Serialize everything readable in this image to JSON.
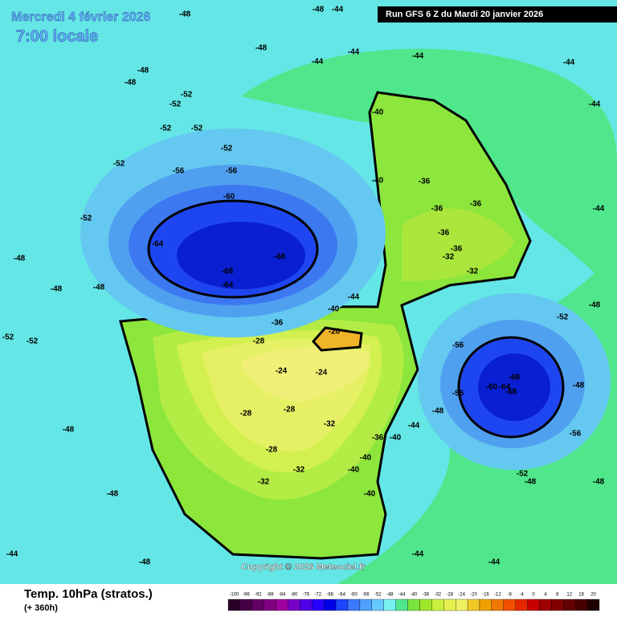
{
  "header": {
    "date": "Mercredi 4 février 2026",
    "time": "7:00 locale",
    "run": "Run GFS 6 Z du Mardi 20 janvier 2026"
  },
  "copyright": "Copyright © 2026 Meteociel.fr",
  "footer": {
    "title": "Temp. 10hPa (stratos.)",
    "lead": "(+ 360h)"
  },
  "scale": {
    "labels": [
      -100,
      -96,
      -92,
      -88,
      -84,
      -80,
      -76,
      -72,
      -68,
      -64,
      -60,
      -56,
      -52,
      -48,
      -44,
      -40,
      -36,
      -32,
      -28,
      -24,
      -20,
      -16,
      -12,
      -8,
      -4,
      0,
      4,
      8,
      12,
      16,
      20
    ],
    "colors": [
      "#2a002a",
      "#460046",
      "#640064",
      "#820082",
      "#a000a0",
      "#7800c8",
      "#5000e6",
      "#2800ff",
      "#0000e6",
      "#1e46ff",
      "#3c78ff",
      "#50a0ff",
      "#64c8ff",
      "#78f0f0",
      "#50e68c",
      "#78e63c",
      "#a0e628",
      "#c8f03c",
      "#e6f050",
      "#f0f064",
      "#f0c828",
      "#f0a000",
      "#f07800",
      "#f05000",
      "#e62800",
      "#c80000",
      "#a00000",
      "#820000",
      "#640000",
      "#460000",
      "#1e0000"
    ]
  },
  "contour_labels": [
    -48,
    -48,
    -44,
    -44,
    -44,
    -48,
    -48,
    -52,
    -52,
    -52,
    -52,
    -52,
    -52,
    -56,
    -56,
    -60,
    -64,
    -68,
    -68,
    -64,
    -52,
    -48,
    -48,
    -40,
    -40,
    -36,
    -36,
    -36,
    -36,
    -36,
    -32,
    -32,
    -40,
    -44,
    -36,
    -20,
    -28,
    -24,
    -24,
    -28,
    -28,
    -28,
    -32,
    -32,
    -32,
    -56,
    -60,
    -64,
    -68,
    -68,
    -56,
    -56,
    -52,
    -52,
    -36,
    -40,
    -40,
    -40,
    -40,
    -48,
    -44,
    -48,
    -52,
    -52,
    -48,
    -48,
    -48,
    -44,
    -44,
    -44,
    -44,
    -48,
    -48,
    -48,
    -44,
    -44,
    -48,
    -48,
    -44
  ]
}
